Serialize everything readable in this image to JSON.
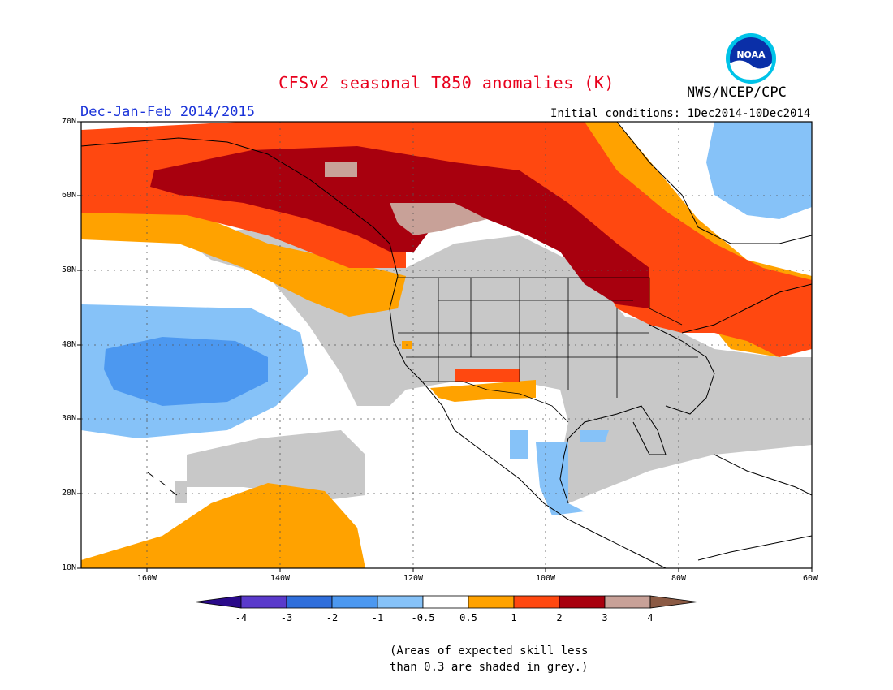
{
  "header": {
    "title": "CFSv2 seasonal T850 anomalies (K)",
    "organization": "NWS/NCEP/CPC",
    "period": "Dec-Jan-Feb 2014/2015",
    "initial_conditions": "Initial conditions: 1Dec2014-10Dec2014",
    "logo_text": "NOAA"
  },
  "axes": {
    "lat_labels": [
      "70N",
      "60N",
      "50N",
      "40N",
      "30N",
      "20N",
      "10N"
    ],
    "lon_labels": [
      "160W",
      "140W",
      "120W",
      "100W",
      "80W",
      "60W"
    ]
  },
  "legend": {
    "ticks": [
      "-4",
      "-3",
      "-2",
      "-1",
      "-0.5",
      "0.5",
      "1",
      "2",
      "3",
      "4"
    ],
    "colors": [
      "#2a0a8a",
      "#5a3acb",
      "#2f6edb",
      "#4c98f0",
      "#86c2f8",
      "#ffffff",
      "#ffa200",
      "#ff4810",
      "#a8000e",
      "#c8a198",
      "#8b5a44"
    ]
  },
  "note": {
    "line1": "(Areas of expected skill less",
    "line2": "than 0.3 are shaded in grey.)"
  },
  "colors": {
    "title": "#e8001c",
    "period": "#1a33d9",
    "grey_skill": "#c8c8c8"
  }
}
